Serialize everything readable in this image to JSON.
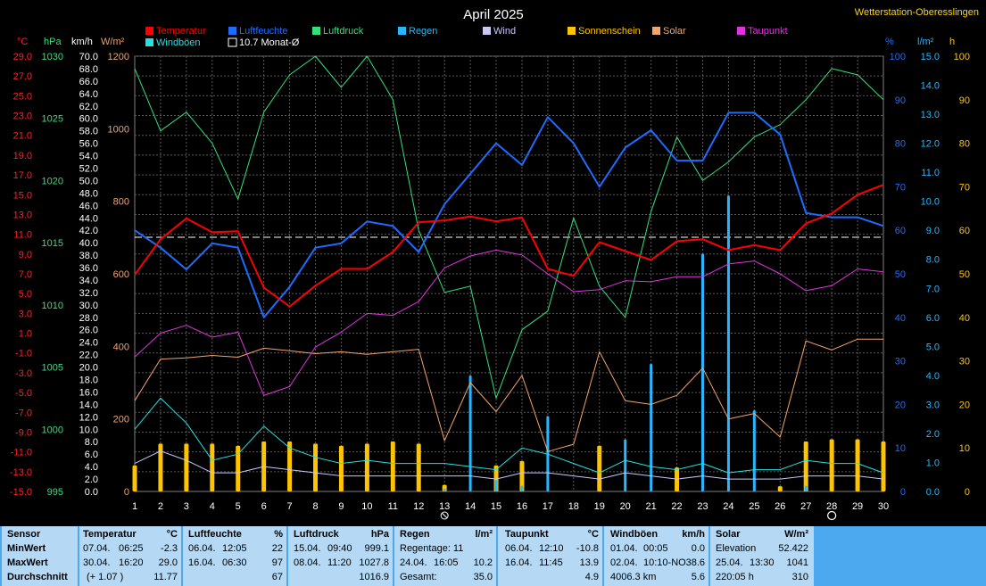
{
  "header": {
    "title": "April 2025",
    "station": "Wetterstation-Oberesslingen"
  },
  "legend": [
    {
      "label": "Temperatur",
      "color": "#ff0000"
    },
    {
      "label": "Luftfeuchte",
      "color": "#1e6cff"
    },
    {
      "label": "Luftdruck",
      "color": "#33e07a"
    },
    {
      "label": "Regen",
      "color": "#29b6ff"
    },
    {
      "label": "Wind",
      "color": "#c8c8ff"
    },
    {
      "label": "Sonnenschein",
      "color": "#ffc400"
    },
    {
      "label": "Solar",
      "color": "#f2a46a"
    },
    {
      "label": "Taupunkt",
      "color": "#e033e0"
    },
    {
      "label": "Windböen",
      "color": "#26e0e0"
    },
    {
      "label": "10.7 Monat-Ø",
      "color": "#ffffff"
    }
  ],
  "axes": {
    "temp": {
      "unit": "°C",
      "color": "#ff2020",
      "ticks": [
        "29.0",
        "27.0",
        "25.0",
        "23.0",
        "21.0",
        "19.0",
        "17.0",
        "15.0",
        "13.0",
        "11.0",
        "9.0",
        "7.0",
        "5.0",
        "3.0",
        "1.0",
        "-1.0",
        "-3.0",
        "-5.0",
        "-7.0",
        "-9.0",
        "-11.0",
        "-13.0",
        "-15.0"
      ]
    },
    "press": {
      "unit": "hPa",
      "color": "#33e07a",
      "ticks": [
        "1030",
        "1025",
        "1020",
        "1015",
        "1010",
        "1005",
        "1000",
        "995"
      ]
    },
    "wind": {
      "unit": "km/h",
      "color": "#ffffff",
      "ticks": [
        "70.0",
        "68.0",
        "66.0",
        "64.0",
        "62.0",
        "60.0",
        "58.0",
        "56.0",
        "54.0",
        "52.0",
        "50.0",
        "48.0",
        "46.0",
        "44.0",
        "42.0",
        "40.0",
        "38.0",
        "36.0",
        "34.0",
        "32.0",
        "30.0",
        "28.0",
        "26.0",
        "24.0",
        "22.0",
        "20.0",
        "18.0",
        "16.0",
        "14.0",
        "12.0",
        "10.0",
        "8.0",
        "6.0",
        "4.0",
        "2.0",
        "0.0"
      ]
    },
    "solar": {
      "unit": "W/m²",
      "color": "#f2a46a",
      "ticks": [
        "1200",
        "1000",
        "800",
        "600",
        "400",
        "200",
        "0"
      ]
    },
    "humidity": {
      "unit": "%",
      "color": "#1e6cff",
      "ticks": [
        "100",
        "90",
        "80",
        "70",
        "60",
        "50",
        "40",
        "30",
        "20",
        "10",
        "0"
      ]
    },
    "rain": {
      "unit": "l/m²",
      "color": "#29b6ff",
      "ticks": [
        "15.0",
        "14.0",
        "13.0",
        "12.0",
        "11.0",
        "10.0",
        "9.0",
        "8.0",
        "7.0",
        "6.0",
        "5.0",
        "4.0",
        "3.0",
        "2.0",
        "1.0",
        "0.0"
      ]
    },
    "sun": {
      "unit": "h",
      "color": "#ffc400",
      "ticks": [
        "100",
        "90",
        "80",
        "70",
        "60",
        "50",
        "40",
        "30",
        "20",
        "10",
        "0"
      ]
    },
    "days": [
      "1",
      "2",
      "3",
      "4",
      "5",
      "6",
      "7",
      "8",
      "9",
      "10",
      "11",
      "12",
      "13",
      "14",
      "15",
      "16",
      "17",
      "18",
      "19",
      "20",
      "21",
      "22",
      "23",
      "24",
      "25",
      "26",
      "27",
      "28",
      "29",
      "30"
    ],
    "moon_new_day": 13,
    "moon_full_day": 28
  },
  "chart_data": {
    "type": "line",
    "title": "April 2025",
    "x": [
      1,
      2,
      3,
      4,
      5,
      6,
      7,
      8,
      9,
      10,
      11,
      12,
      13,
      14,
      15,
      16,
      17,
      18,
      19,
      20,
      21,
      22,
      23,
      24,
      25,
      26,
      27,
      28,
      29,
      30
    ],
    "month_mean_temp": 10.7,
    "series": [
      {
        "name": "Temperatur",
        "axis": "°C",
        "values": [
          6.9,
          10.5,
          12.6,
          11.2,
          11.3,
          5.6,
          3.7,
          5.8,
          7.5,
          7.5,
          9.2,
          12.2,
          12.4,
          12.8,
          12.3,
          12.7,
          7.5,
          6.8,
          10.2,
          9.3,
          8.4,
          10.3,
          10.5,
          9.4,
          9.9,
          9.4,
          12.1,
          13.1,
          15.0,
          16.0
        ]
      },
      {
        "name": "Luftfeuchte",
        "axis": "%",
        "values": [
          60,
          56,
          51,
          57,
          56,
          40,
          47,
          56,
          57,
          62,
          61,
          55,
          66,
          73,
          80,
          75,
          86,
          80,
          70,
          79,
          83,
          76,
          76,
          87,
          87,
          82,
          64,
          63,
          63,
          61
        ]
      },
      {
        "name": "Luftdruck",
        "axis": "hPa",
        "values": [
          1029,
          1024,
          1025.5,
          1023,
          1018.5,
          1025.5,
          1028.5,
          1030,
          1027.5,
          1030,
          1026.5,
          1016,
          1011,
          1011.5,
          1002.5,
          1008,
          1009.5,
          1017,
          1011.5,
          1009,
          1017.5,
          1023.5,
          1020,
          1021.5,
          1023.5,
          1024.5,
          1026.5,
          1029,
          1028.5,
          1026.5
        ]
      },
      {
        "name": "Taupunkt",
        "axis": "°C",
        "values": [
          -1.4,
          1.0,
          1.8,
          0.6,
          1.1,
          -5.3,
          -4.4,
          -0.4,
          1.1,
          3.0,
          2.8,
          4.2,
          7.6,
          8.8,
          9.4,
          8.9,
          7.0,
          5.2,
          5.4,
          6.3,
          6.2,
          6.7,
          6.7,
          8.0,
          8.3,
          7.0,
          5.3,
          5.8,
          7.5,
          7.2
        ]
      },
      {
        "name": "Solar",
        "axis": "W/m²",
        "values": [
          250,
          365,
          368,
          375,
          370,
          395,
          388,
          380,
          385,
          378,
          385,
          392,
          140,
          300,
          220,
          320,
          110,
          130,
          385,
          250,
          240,
          265,
          340,
          200,
          215,
          150,
          415,
          390,
          420,
          420
        ]
      },
      {
        "name": "Windböen",
        "axis": "km/h",
        "values": [
          10.0,
          15.0,
          11.0,
          5.0,
          6.0,
          10.5,
          7.0,
          5.5,
          4.5,
          5.0,
          4.5,
          4.5,
          4.5,
          4.0,
          3.5,
          7.0,
          6.0,
          4.5,
          3.0,
          5.0,
          4.0,
          3.5,
          4.5,
          3.0,
          3.5,
          3.5,
          5.0,
          4.5,
          4.5,
          3.0
        ]
      },
      {
        "name": "Wind",
        "axis": "km/h",
        "values": [
          4.5,
          6.5,
          5.0,
          3.0,
          3.0,
          4.0,
          3.5,
          3.0,
          2.5,
          2.5,
          2.5,
          2.5,
          2.5,
          2.5,
          2.0,
          3.0,
          3.0,
          2.5,
          2.0,
          3.0,
          2.5,
          2.0,
          2.5,
          2.0,
          2.0,
          2.0,
          2.5,
          2.5,
          2.5,
          2.0
        ]
      },
      {
        "name": "Regen",
        "axis": "l/m²",
        "type": "bar",
        "values": [
          0,
          0,
          0,
          0,
          0,
          0,
          0,
          0,
          0,
          0,
          0,
          0,
          0.1,
          4.0,
          0.4,
          0.2,
          2.6,
          0,
          0,
          1.8,
          4.4,
          0,
          8.2,
          10.2,
          2.8,
          0,
          0.2,
          0,
          0,
          0
        ]
      },
      {
        "name": "Sonnenschein",
        "axis": "h",
        "type": "bar",
        "values": [
          6,
          11,
          11,
          11,
          10.5,
          11.5,
          11.5,
          11,
          10.5,
          11,
          11.5,
          11,
          1.5,
          0,
          6,
          7,
          0,
          0,
          10.5,
          0,
          0,
          5.5,
          0,
          0,
          0,
          1.2,
          11.5,
          12,
          12,
          11.5
        ]
      }
    ]
  },
  "stats": {
    "row_labels": [
      "Sensor",
      "MinWert",
      "MaxWert",
      "Durchschnitt"
    ],
    "temperature": {
      "header": "Temperatur",
      "unit": "°C",
      "min_date": "07.04.",
      "min_time": "06:25",
      "min": "-2.3",
      "max_date": "30.04.",
      "max_time": "16:20",
      "max": "29.0",
      "avg_note": "(+ 1.07 )",
      "avg": "11.77"
    },
    "humidity": {
      "header": "Luftfeuchte",
      "unit": "%",
      "min_date": "06.04.",
      "min_time": "12:05",
      "min": "22",
      "max_date": "16.04.",
      "max_time": "06:30",
      "max": "97",
      "avg": "67"
    },
    "pressure": {
      "header": "Luftdruck",
      "unit": "hPa",
      "min_date": "15.04.",
      "min_time": "09:40",
      "min": "999.1",
      "max_date": "08.04.",
      "max_time": "11:20",
      "max": "1027.8",
      "avg": "1016.9"
    },
    "rain": {
      "header": "Regen",
      "unit": "l/m²",
      "min_text": "Regentage: 11",
      "max_date": "24.04.",
      "max_time": "16:05",
      "max": "10.2",
      "total_label": "Gesamt:",
      "total": "35.0"
    },
    "dewpoint": {
      "header": "Taupunkt",
      "unit": "°C",
      "min_date": "06.04.",
      "min_time": "12:10",
      "min": "-10.8",
      "max_date": "16.04.",
      "max_time": "11:45",
      "max": "13.9",
      "avg": "4.9"
    },
    "gusts": {
      "header": "Windböen",
      "unit": "km/h",
      "min_date": "01.04.",
      "min_time": "00:05",
      "min": "0.0",
      "max_date": "02.04.",
      "max_time": "10:10-NO",
      "max": "38.6",
      "dist": "4006.3 km",
      "avg": "5.6"
    },
    "solar": {
      "header": "Solar",
      "unit": "W/m²",
      "elev_label": "Elevation",
      "elev": "52.422",
      "max_date": "25.04.",
      "max_time": "13:30",
      "max": "1041",
      "hours": "220:05 h",
      "avg": "310"
    }
  }
}
